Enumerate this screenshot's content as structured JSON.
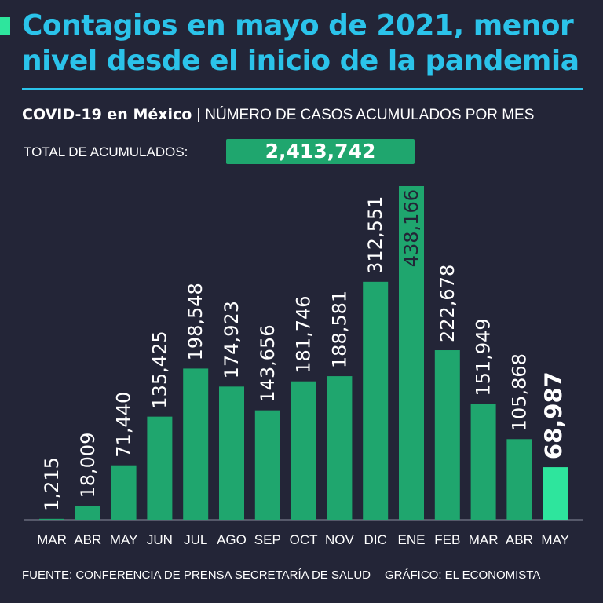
{
  "header": {
    "title": "Contagios en mayo de 2021, menor nivel desde el inicio de la pandemia",
    "subtitle_strong": "COVID-19 en México",
    "subtitle_sep": "|",
    "subtitle_rest": "NÚMERO DE CASOS ACUMULADOS POR MES"
  },
  "total": {
    "label": "TOTAL DE ACUMULADOS:",
    "value": "2,413,742"
  },
  "footer": {
    "source": "FUENTE: CONFERENCIA DE PRENSA SECRETARÍA DE SALUD",
    "credit": "GRÁFICO: EL ECONOMISTA"
  },
  "colors": {
    "background": "#232537",
    "title": "#2bc3ea",
    "bar": "#1fa66e",
    "highlight": "#2ee59d"
  },
  "chart_data": {
    "type": "bar",
    "title": "COVID-19 en México | NÚMERO DE CASOS ACUMULADOS POR MES",
    "xlabel": "",
    "ylabel": "",
    "ylim": [
      0,
      438166
    ],
    "categories": [
      "MAR",
      "ABR",
      "MAY",
      "JUN",
      "JUL",
      "AGO",
      "SEP",
      "OCT",
      "NOV",
      "DIC",
      "ENE",
      "FEB",
      "MAR",
      "ABR",
      "MAY"
    ],
    "values": [
      1215,
      18009,
      71440,
      135425,
      198548,
      174923,
      143656,
      181746,
      188581,
      312551,
      438166,
      222678,
      151949,
      105868,
      68987
    ],
    "labels": [
      "1,215",
      "18,009",
      "71,440",
      "135,425",
      "198,548",
      "174,923",
      "143,656",
      "181,746",
      "188,581",
      "312,551",
      "438,166",
      "222,678",
      "151,949",
      "105,868",
      "68,987"
    ],
    "highlight_index": 14,
    "inside_label_index": 10
  }
}
